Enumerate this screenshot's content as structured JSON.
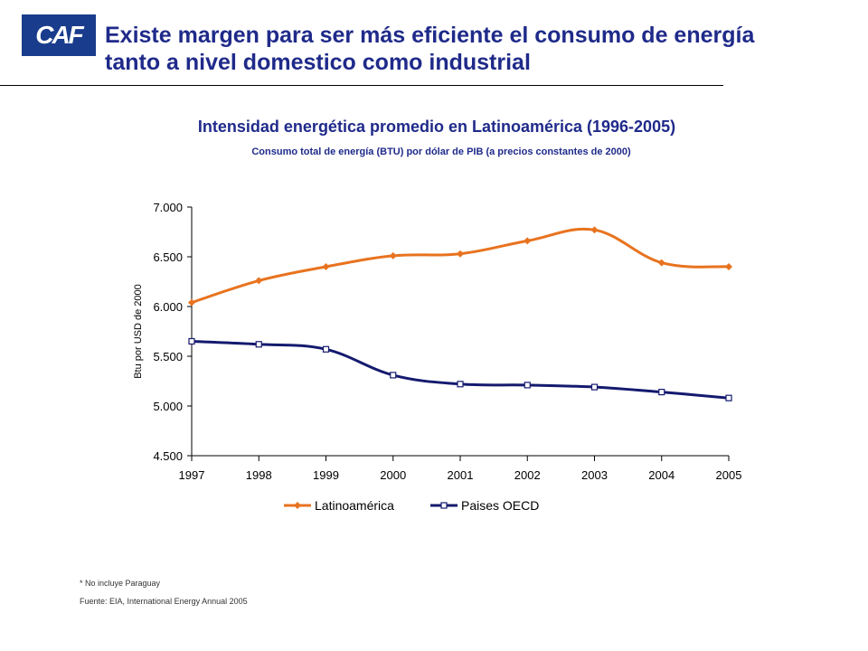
{
  "logo": {
    "text": "CAF",
    "color": "#1a3c8c"
  },
  "slide": {
    "title_line1": "Existe margen para ser más eficiente el consumo de energía",
    "title_line2": "tanto a nivel domestico como industrial"
  },
  "footnotes": {
    "note": "* No incluye Paraguay",
    "source": "Fuente: EIA, International Energy Annual 2005"
  },
  "chart_data": {
    "type": "line",
    "title": "Intensidad energética promedio en Latinoamérica (1996-2005)",
    "subtitle": "Consumo total de energía (BTU) por dólar de PIB (a precios constantes de 2000)",
    "xlabel": "",
    "ylabel": "Btu por USD de 2000",
    "categories": [
      "1997",
      "1998",
      "1999",
      "2000",
      "2001",
      "2002",
      "2003",
      "2004",
      "2005"
    ],
    "ylim": [
      4500,
      7000
    ],
    "yticks": [
      4500,
      5000,
      5500,
      6000,
      6500,
      7000
    ],
    "ytick_labels": [
      "4.500",
      "5.000",
      "5.500",
      "6.000",
      "6.500",
      "7.000"
    ],
    "grid": false,
    "legend_position": "bottom",
    "series": [
      {
        "name": "Latinoamérica",
        "color": "#e8731f",
        "marker": "diamond",
        "values": [
          6040,
          6260,
          6400,
          6510,
          6530,
          6660,
          6770,
          6440,
          6400
        ]
      },
      {
        "name": "Paises OECD",
        "color": "#141a6e",
        "marker": "square",
        "values": [
          5650,
          5620,
          5570,
          5310,
          5220,
          5210,
          5190,
          5140,
          5080
        ]
      }
    ]
  }
}
